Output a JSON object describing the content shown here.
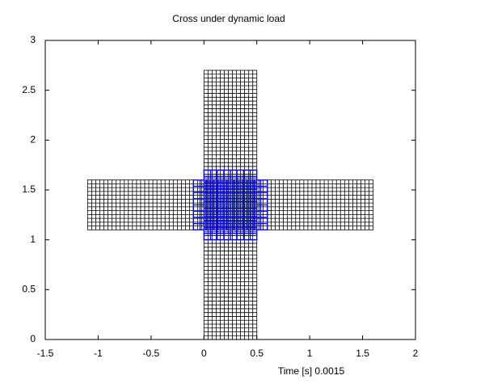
{
  "chart_data": {
    "type": "mesh",
    "title": "Cross under dynamic load",
    "annotation": "Time [s]  0.0015",
    "xlim": [
      -1.5,
      2
    ],
    "ylim": [
      0,
      3
    ],
    "xticks": [
      -1.5,
      -1,
      -0.5,
      0,
      0.5,
      1,
      1.5,
      2
    ],
    "yticks": [
      0,
      0.5,
      1,
      1.5,
      2,
      2.5,
      3
    ],
    "patches": [
      {
        "color": "#000000",
        "x": [
          0,
          0.5
        ],
        "y": [
          0,
          2.7
        ],
        "nx": 13,
        "ny": 70
      },
      {
        "color": "#000000",
        "x": [
          -1.1,
          1.6
        ],
        "y": [
          1.1,
          1.6
        ],
        "nx": 70,
        "ny": 13
      },
      {
        "color": "#0000ff",
        "x": [
          0,
          0.5
        ],
        "y": [
          1,
          1.7
        ],
        "nx": 8,
        "ny": 11
      },
      {
        "color": "#0000ff",
        "x": [
          -0.1,
          0.6
        ],
        "y": [
          1.1,
          1.6
        ],
        "nx": 11,
        "ny": 8
      }
    ]
  }
}
